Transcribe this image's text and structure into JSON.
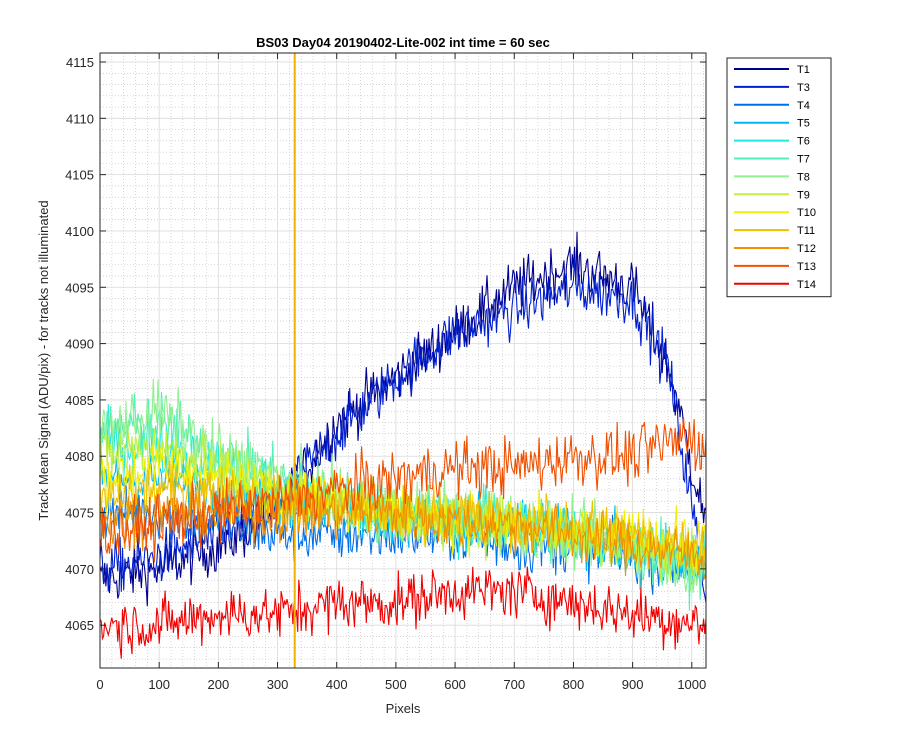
{
  "chart_data": {
    "type": "line",
    "title": "BS03 Day04 20190402-Lite-002 int time = 60 sec",
    "xlabel": "Pixels",
    "ylabel": "Track Mean Signal (ADU/pix) - for tracks not illuminated",
    "xlim": [
      0,
      1024
    ],
    "ylim": [
      4061.2,
      4115.8
    ],
    "xticks": [
      0,
      100,
      200,
      300,
      400,
      500,
      600,
      700,
      800,
      900,
      1000
    ],
    "yticks": [
      4065,
      4070,
      4075,
      4080,
      4085,
      4090,
      4095,
      4100,
      4105,
      4110,
      4115
    ],
    "grid": true,
    "minor_grid": true,
    "legend_position": "outside-right-top",
    "vertical_marker": {
      "x": 329,
      "color": "#f0b000"
    },
    "series": [
      {
        "name": "T1",
        "color": "#00008f",
        "noise": 1.2,
        "profile": [
          [
            0,
            4069
          ],
          [
            100,
            4070
          ],
          [
            200,
            4072
          ],
          [
            300,
            4075
          ],
          [
            400,
            4083
          ],
          [
            500,
            4087
          ],
          [
            600,
            4091
          ],
          [
            700,
            4095
          ],
          [
            800,
            4097
          ],
          [
            900,
            4095
          ],
          [
            960,
            4088
          ],
          [
            1024,
            4074
          ]
        ]
      },
      {
        "name": "T3",
        "color": "#0020d0",
        "noise": 1.2,
        "profile": [
          [
            0,
            4070
          ],
          [
            100,
            4071
          ],
          [
            200,
            4073
          ],
          [
            300,
            4076
          ],
          [
            400,
            4082
          ],
          [
            500,
            4087
          ],
          [
            600,
            4091
          ],
          [
            700,
            4093
          ],
          [
            800,
            4095
          ],
          [
            900,
            4094
          ],
          [
            960,
            4088
          ],
          [
            1024,
            4068
          ]
        ]
      },
      {
        "name": "T4",
        "color": "#0070e8",
        "noise": 1.2,
        "profile": [
          [
            0,
            4075
          ],
          [
            100,
            4075
          ],
          [
            200,
            4074
          ],
          [
            300,
            4073
          ],
          [
            400,
            4073
          ],
          [
            500,
            4073
          ],
          [
            600,
            4073
          ],
          [
            700,
            4072
          ],
          [
            800,
            4072
          ],
          [
            900,
            4071
          ],
          [
            1024,
            4070
          ]
        ]
      },
      {
        "name": "T5",
        "color": "#00b8f0",
        "noise": 1.2,
        "profile": [
          [
            0,
            4078
          ],
          [
            100,
            4078
          ],
          [
            200,
            4077
          ],
          [
            300,
            4076
          ],
          [
            400,
            4075
          ],
          [
            500,
            4075
          ],
          [
            600,
            4074
          ],
          [
            700,
            4074
          ],
          [
            800,
            4073
          ],
          [
            900,
            4072
          ],
          [
            1024,
            4070
          ]
        ]
      },
      {
        "name": "T6",
        "color": "#20e8e0",
        "noise": 1.3,
        "profile": [
          [
            0,
            4081
          ],
          [
            100,
            4081
          ],
          [
            200,
            4079
          ],
          [
            300,
            4077
          ],
          [
            400,
            4076
          ],
          [
            500,
            4075
          ],
          [
            600,
            4074
          ],
          [
            700,
            4074
          ],
          [
            800,
            4073
          ],
          [
            900,
            4072
          ],
          [
            1024,
            4071
          ]
        ]
      },
      {
        "name": "T7",
        "color": "#50f0b8",
        "noise": 1.4,
        "profile": [
          [
            0,
            4082
          ],
          [
            100,
            4083
          ],
          [
            200,
            4080
          ],
          [
            300,
            4078
          ],
          [
            400,
            4076
          ],
          [
            500,
            4075
          ],
          [
            600,
            4075
          ],
          [
            700,
            4074
          ],
          [
            800,
            4073
          ],
          [
            900,
            4072
          ],
          [
            1024,
            4070
          ]
        ]
      },
      {
        "name": "T8",
        "color": "#90f090",
        "noise": 1.4,
        "profile": [
          [
            0,
            4082
          ],
          [
            100,
            4084
          ],
          [
            200,
            4080
          ],
          [
            300,
            4078
          ],
          [
            400,
            4076
          ],
          [
            500,
            4075
          ],
          [
            600,
            4075
          ],
          [
            700,
            4074
          ],
          [
            800,
            4073
          ],
          [
            900,
            4072
          ],
          [
            1024,
            4070
          ]
        ]
      },
      {
        "name": "T9",
        "color": "#c0f040",
        "noise": 1.3,
        "profile": [
          [
            0,
            4080
          ],
          [
            100,
            4081
          ],
          [
            200,
            4079
          ],
          [
            300,
            4077
          ],
          [
            400,
            4076
          ],
          [
            500,
            4075
          ],
          [
            600,
            4074
          ],
          [
            700,
            4074
          ],
          [
            800,
            4073
          ],
          [
            900,
            4072
          ],
          [
            1024,
            4071
          ]
        ]
      },
      {
        "name": "T10",
        "color": "#f0f000",
        "noise": 1.3,
        "profile": [
          [
            0,
            4078
          ],
          [
            100,
            4079
          ],
          [
            200,
            4078
          ],
          [
            300,
            4077
          ],
          [
            400,
            4076
          ],
          [
            500,
            4075
          ],
          [
            600,
            4074
          ],
          [
            700,
            4074
          ],
          [
            800,
            4073
          ],
          [
            900,
            4073
          ],
          [
            1024,
            4072
          ]
        ]
      },
      {
        "name": "T11",
        "color": "#f0c000",
        "noise": 1.2,
        "profile": [
          [
            0,
            4076
          ],
          [
            100,
            4077
          ],
          [
            200,
            4077
          ],
          [
            300,
            4076
          ],
          [
            400,
            4076
          ],
          [
            500,
            4075
          ],
          [
            600,
            4075
          ],
          [
            700,
            4074
          ],
          [
            800,
            4074
          ],
          [
            900,
            4073
          ],
          [
            1024,
            4072
          ]
        ]
      },
      {
        "name": "T12",
        "color": "#f09000",
        "noise": 1.2,
        "profile": [
          [
            0,
            4074
          ],
          [
            100,
            4075
          ],
          [
            200,
            4075
          ],
          [
            300,
            4075
          ],
          [
            400,
            4075
          ],
          [
            500,
            4075
          ],
          [
            600,
            4074
          ],
          [
            700,
            4074
          ],
          [
            800,
            4073
          ],
          [
            900,
            4072
          ],
          [
            1024,
            4071
          ]
        ]
      },
      {
        "name": "T13",
        "color": "#f05000",
        "noise": 1.3,
        "profile": [
          [
            0,
            4073
          ],
          [
            100,
            4074
          ],
          [
            200,
            4075
          ],
          [
            300,
            4076
          ],
          [
            400,
            4077
          ],
          [
            500,
            4078
          ],
          [
            600,
            4079
          ],
          [
            700,
            4079
          ],
          [
            800,
            4080
          ],
          [
            900,
            4080
          ],
          [
            1000,
            4082
          ],
          [
            1024,
            4080
          ]
        ]
      },
      {
        "name": "T14",
        "color": "#f00000",
        "noise": 1.2,
        "profile": [
          [
            0,
            4065
          ],
          [
            100,
            4065
          ],
          [
            200,
            4066
          ],
          [
            300,
            4066
          ],
          [
            400,
            4067
          ],
          [
            500,
            4067
          ],
          [
            600,
            4068
          ],
          [
            700,
            4068
          ],
          [
            800,
            4067
          ],
          [
            900,
            4066
          ],
          [
            1024,
            4065
          ]
        ]
      }
    ]
  }
}
